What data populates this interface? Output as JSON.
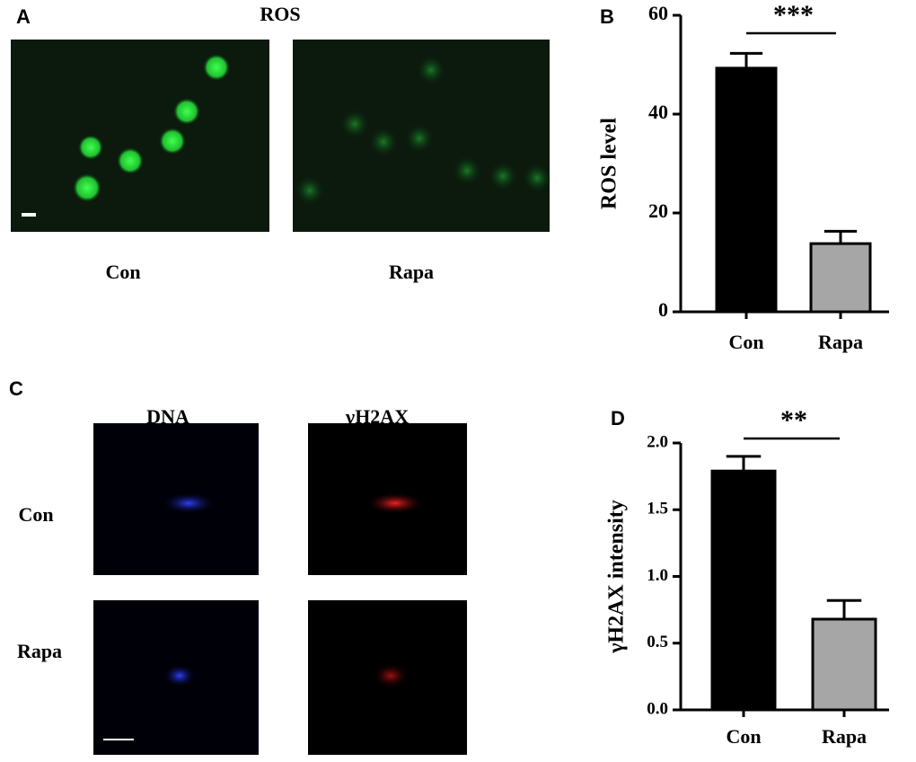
{
  "panels": {
    "a": {
      "letter": "A",
      "title": "ROS",
      "captions": [
        "Con",
        "Rapa"
      ]
    },
    "b": {
      "letter": "B"
    },
    "c": {
      "letter": "C",
      "columns": [
        "DNA",
        "γH2AX"
      ],
      "rows": [
        "Con",
        "Rapa"
      ]
    },
    "d": {
      "letter": "D"
    }
  },
  "chart_data": [
    {
      "type": "bar",
      "ylabel": "ROS level",
      "categories": [
        "Con",
        "Rapa"
      ],
      "values": [
        49.3,
        13.8
      ],
      "errors": [
        3.0,
        2.5
      ],
      "colors": [
        "#000000",
        "#a6a6a6"
      ],
      "ylim": [
        0,
        60
      ],
      "yticks": [
        0,
        20,
        40,
        60
      ],
      "significance": "***"
    },
    {
      "type": "bar",
      "ylabel": "γH2AX intensity",
      "categories": [
        "Con",
        "Rapa"
      ],
      "values": [
        1.79,
        0.68
      ],
      "errors": [
        0.11,
        0.14
      ],
      "colors": [
        "#000000",
        "#a6a6a6"
      ],
      "ylim": [
        0,
        2.0
      ],
      "yticks": [
        {
          "value": 0,
          "label": "0.0"
        },
        {
          "value": 0.5,
          "label": "0.5"
        },
        {
          "value": 1.0,
          "label": "1.0"
        },
        {
          "value": 1.5,
          "label": "1.5"
        },
        {
          "value": 2.0,
          "label": "2.0"
        }
      ],
      "significance": "**"
    }
  ]
}
